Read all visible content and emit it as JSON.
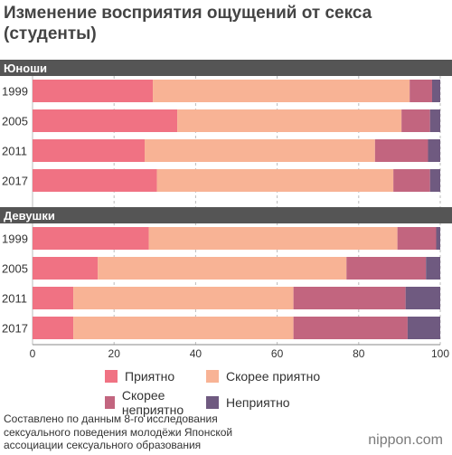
{
  "title": "Изменение восприятия ощущений от секса (студенты)",
  "source": "Составлено по данным 8-го исследования сексуального поведения молодёжи Японской ассоциации сексуального образования",
  "brand": "nippon.com",
  "colors": {
    "pleasant": "#f07283",
    "rather_pleasant": "#f8b395",
    "rather_unpleasant": "#c2657f",
    "unpleasant": "#6f5a80",
    "group_header_bg": "#555555",
    "grid": "#bbbbbb"
  },
  "chart_data": {
    "type": "bar",
    "orientation": "horizontal",
    "stacked": true,
    "x_unit": "(%)",
    "xlim": [
      0,
      100
    ],
    "x_ticks": [
      "0",
      "20",
      "40",
      "60",
      "80",
      "100"
    ],
    "legend": [
      "Приятно",
      "Скорее приятно",
      "Скорее неприятно",
      "Неприятно"
    ],
    "groups": [
      {
        "name": "Юноши",
        "categories": [
          "1999",
          "2005",
          "2011",
          "2017"
        ],
        "series": [
          {
            "name": "Приятно",
            "values": [
              29.5,
              35.5,
              27.5,
              30.5
            ]
          },
          {
            "name": "Скорее приятно",
            "values": [
              63.0,
              55.0,
              56.5,
              58.0
            ]
          },
          {
            "name": "Скорее неприятно",
            "values": [
              5.5,
              7.0,
              13.0,
              9.0
            ]
          },
          {
            "name": "Неприятно",
            "values": [
              2.0,
              2.5,
              3.0,
              2.5
            ]
          }
        ]
      },
      {
        "name": "Девушки",
        "categories": [
          "1999",
          "2005",
          "2011",
          "2017"
        ],
        "series": [
          {
            "name": "Приятно",
            "values": [
              28.5,
              16.0,
              10.0,
              10.0
            ]
          },
          {
            "name": "Скорее приятно",
            "values": [
              61.0,
              61.0,
              54.0,
              54.0
            ]
          },
          {
            "name": "Скорее неприятно",
            "values": [
              9.5,
              19.5,
              27.5,
              28.0
            ]
          },
          {
            "name": "Неприятно",
            "values": [
              1.0,
              3.5,
              8.5,
              8.0
            ]
          }
        ]
      }
    ]
  }
}
